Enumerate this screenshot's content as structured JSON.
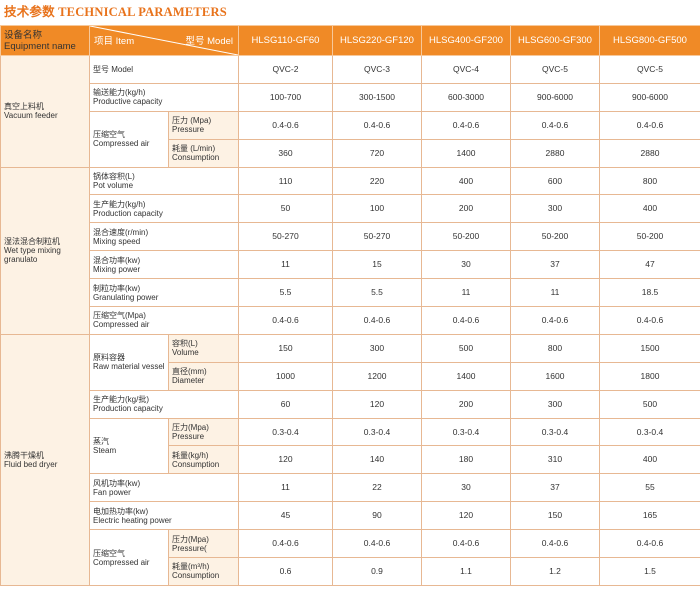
{
  "title": "技术参数 TECHNICAL PARAMETERS",
  "header": {
    "equipment_zh": "设备名称",
    "equipment_en": "Equipment name",
    "item": "项目 Item",
    "model": "型号 Model",
    "models": [
      "HLSG110-GF60",
      "HLSG220-GF120",
      "HLSG400-GF200",
      "HLSG600-GF300",
      "HLSG800-GF500"
    ]
  },
  "sections": [
    {
      "zh": "真空上料机",
      "en": "Vacuum feeder",
      "rows": [
        {
          "zh": "型号 Model",
          "en": "",
          "sub_zh": "",
          "sub_en": "",
          "values": [
            "QVC-2",
            "QVC-3",
            "QVC-4",
            "QVC-5",
            "QVC-5"
          ]
        },
        {
          "zh": "输送能力(kg/h)",
          "en": "Productive capacity",
          "sub_zh": "",
          "sub_en": "",
          "values": [
            "100-700",
            "300-1500",
            "600-3000",
            "900-6000",
            "900-6000"
          ]
        },
        {
          "zh": "压缩空气",
          "en": "Compressed air",
          "sub_zh": "压力 (Mpa)",
          "sub_en": "Pressure",
          "values": [
            "0.4-0.6",
            "0.4-0.6",
            "0.4-0.6",
            "0.4-0.6",
            "0.4-0.6"
          ]
        },
        {
          "zh": "",
          "en": "",
          "sub_zh": "耗量 (L/min)",
          "sub_en": "Consumption",
          "values": [
            "360",
            "720",
            "1400",
            "2880",
            "2880"
          ]
        }
      ]
    },
    {
      "zh": "湿法混合制粒机",
      "en": "Wet type mixing granulato",
      "rows": [
        {
          "zh": "锅体容积(L)",
          "en": "Pot volume",
          "sub_zh": "",
          "sub_en": "",
          "values": [
            "110",
            "220",
            "400",
            "600",
            "800"
          ]
        },
        {
          "zh": "生产能力(kg/h)",
          "en": "Production capacity",
          "sub_zh": "",
          "sub_en": "",
          "values": [
            "50",
            "100",
            "200",
            "300",
            "400"
          ]
        },
        {
          "zh": "混合速度(r/min)",
          "en": "Mixing speed",
          "sub_zh": "",
          "sub_en": "",
          "values": [
            "50-270",
            "50-270",
            "50-200",
            "50-200",
            "50-200"
          ]
        },
        {
          "zh": "混合功率(kw)",
          "en": "Mixing power",
          "sub_zh": "",
          "sub_en": "",
          "values": [
            "11",
            "15",
            "30",
            "37",
            "47"
          ]
        },
        {
          "zh": "制粒功率(kw)",
          "en": "Granulating power",
          "sub_zh": "",
          "sub_en": "",
          "values": [
            "5.5",
            "5.5",
            "11",
            "11",
            "18.5"
          ]
        },
        {
          "zh": "压缩空气(Mpa)",
          "en": "Compressed air",
          "sub_zh": "",
          "sub_en": "",
          "values": [
            "0.4-0.6",
            "0.4-0.6",
            "0.4-0.6",
            "0.4-0.6",
            "0.4-0.6"
          ]
        }
      ]
    },
    {
      "zh": "沸腾干燥机",
      "en": "Fluid bed dryer",
      "rows": [
        {
          "zh": "原料容器",
          "en": "Raw material vessel",
          "sub_zh": "容积(L)",
          "sub_en": "Volume",
          "values": [
            "150",
            "300",
            "500",
            "800",
            "1500"
          ]
        },
        {
          "zh": "",
          "en": "",
          "sub_zh": "直径(mm)",
          "sub_en": "Diameter",
          "values": [
            "1000",
            "1200",
            "1400",
            "1600",
            "1800"
          ]
        },
        {
          "zh": "生产能力(kg/批)",
          "en": "Production capacity",
          "sub_zh": "",
          "sub_en": "",
          "values": [
            "60",
            "120",
            "200",
            "300",
            "500"
          ]
        },
        {
          "zh": "蒸汽",
          "en": "Steam",
          "sub_zh": "压力(Mpa)",
          "sub_en": "Pressure",
          "values": [
            "0.3-0.4",
            "0.3-0.4",
            "0.3-0.4",
            "0.3-0.4",
            "0.3-0.4"
          ]
        },
        {
          "zh": "",
          "en": "",
          "sub_zh": "耗量(kg/h)",
          "sub_en": "Consumption",
          "values": [
            "120",
            "140",
            "180",
            "310",
            "400"
          ]
        },
        {
          "zh": "风机功率(kw)",
          "en": "Fan power",
          "sub_zh": "",
          "sub_en": "",
          "values": [
            "11",
            "22",
            "30",
            "37",
            "55"
          ]
        },
        {
          "zh": "电加热功率(kw)",
          "en": "Electric heating power",
          "sub_zh": "",
          "sub_en": "",
          "values": [
            "45",
            "90",
            "120",
            "150",
            "165"
          ]
        },
        {
          "zh": "压缩空气",
          "en": "Compressed air",
          "sub_zh": "压力(Mpa)",
          "sub_en": "Pressure(",
          "values": [
            "0.4-0.6",
            "0.4-0.6",
            "0.4-0.6",
            "0.4-0.6",
            "0.4-0.6"
          ]
        },
        {
          "zh": "",
          "en": "",
          "sub_zh": "耗量(m³/h)",
          "sub_en": "Consumption",
          "values": [
            "0.6",
            "0.9",
            "1.1",
            "1.2",
            "1.5"
          ]
        }
      ]
    }
  ]
}
